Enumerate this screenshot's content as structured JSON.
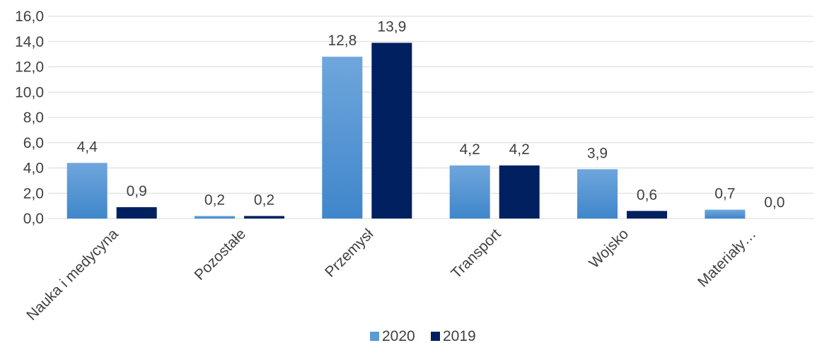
{
  "chart_data": {
    "type": "bar",
    "categories": [
      "Nauka i medycyna",
      "Pozostałe",
      "Przemysł",
      "Transport",
      "Wojsko",
      "Materiały…"
    ],
    "series": [
      {
        "name": "2020",
        "values": [
          4.4,
          0.2,
          12.8,
          4.2,
          3.9,
          0.7
        ],
        "value_labels": [
          "4,4",
          "0,2",
          "12,8",
          "4,2",
          "3,9",
          "0,7"
        ],
        "color": "#5B9BD5"
      },
      {
        "name": "2019",
        "values": [
          0.9,
          0.2,
          13.9,
          4.2,
          0.6,
          0.0
        ],
        "value_labels": [
          "0,9",
          "0,2",
          "13,9",
          "4,2",
          "0,6",
          "0,0"
        ],
        "color": "#002060"
      }
    ],
    "ylim": [
      0,
      16
    ],
    "yticks": [
      0,
      2,
      4,
      6,
      8,
      10,
      12,
      14,
      16
    ],
    "ytick_labels": [
      "0,0",
      "2,0",
      "4,0",
      "6,0",
      "8,0",
      "10,0",
      "12,0",
      "14,0",
      "16,0"
    ],
    "grid": true,
    "legend": "bottom"
  }
}
